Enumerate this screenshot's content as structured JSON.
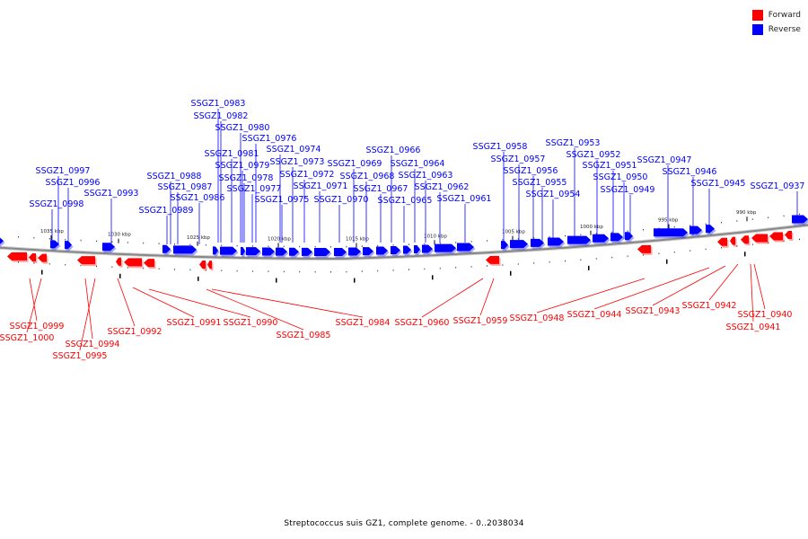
{
  "legend": {
    "forward": {
      "label": "Forward",
      "color": "#ff0000"
    },
    "reverse": {
      "label": "Reverse",
      "color": "#0000ff"
    }
  },
  "caption": "Streptococcus suis GZ1, complete genome. - 0..2038034",
  "colors": {
    "forward": "#ff0000",
    "reverse": "#0000ff",
    "backbone": "#888888"
  },
  "kbp_ticks": [
    "1035 kbp",
    "1030 kbp",
    "1025 kbp",
    "1020 kbp",
    "1015 kbp",
    "1010 kbp",
    "1005 kbp",
    "1000 kbp",
    "995 kbp",
    "990 kbp"
  ],
  "reverse_genes": [
    "SSGZ1_0983",
    "SSGZ1_0982",
    "SSGZ1_0980",
    "SSGZ1_0976",
    "SSGZ1_0974",
    "SSGZ1_0981",
    "SSGZ1_0973",
    "SSGZ1_0979",
    "SSGZ1_0966",
    "SSGZ1_0958",
    "SSGZ1_0953",
    "SSGZ1_0969",
    "SSGZ1_0964",
    "SSGZ1_0957",
    "SSGZ1_0952",
    "SSGZ1_0947",
    "SSGZ1_0997",
    "SSGZ1_0988",
    "SSGZ1_0978",
    "SSGZ1_0972",
    "SSGZ1_0968",
    "SSGZ1_0963",
    "SSGZ1_0956",
    "SSGZ1_0951",
    "SSGZ1_0946",
    "SSGZ1_0996",
    "SSGZ1_0987",
    "SSGZ1_0977",
    "SSGZ1_0971",
    "SSGZ1_0967",
    "SSGZ1_0962",
    "SSGZ1_0955",
    "SSGZ1_0950",
    "SSGZ1_0945",
    "SSGZ1_0937",
    "SSGZ1_0993",
    "SSGZ1_0986",
    "SSGZ1_0975",
    "SSGZ1_0970",
    "SSGZ1_0965",
    "SSGZ1_0961",
    "SSGZ1_0954",
    "SSGZ1_0949",
    "SSGZ1_0998",
    "SSGZ1_0989"
  ],
  "forward_genes": [
    "SSGZ1_0999",
    "SSGZ1_1000",
    "SSGZ1_0994",
    "SSGZ1_0995",
    "SSGZ1_0992",
    "SSGZ1_0991",
    "SSGZ1_0990",
    "SSGZ1_0985",
    "SSGZ1_0984",
    "SSGZ1_0960",
    "SSGZ1_0959",
    "SSGZ1_0948",
    "SSGZ1_0944",
    "SSGZ1_0943",
    "SSGZ1_0942",
    "SSGZ1_0940",
    "SSGZ1_0941"
  ]
}
